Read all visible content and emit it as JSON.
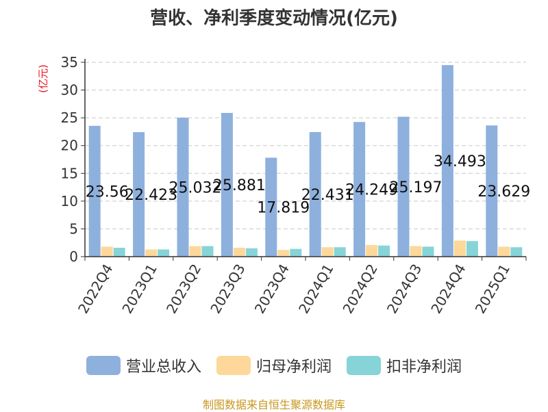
{
  "chart_data": {
    "type": "bar",
    "title": "营收、净利季度变动情况(亿元)",
    "ylabel": "(亿元)",
    "xlabel": "",
    "ylim": [
      0,
      35
    ],
    "yticks": [
      0,
      5,
      10,
      15,
      20,
      25,
      30,
      35
    ],
    "grid": true,
    "legend_position": "bottom",
    "categories": [
      "2022Q4",
      "2023Q1",
      "2023Q2",
      "2023Q3",
      "2023Q4",
      "2024Q1",
      "2024Q2",
      "2024Q3",
      "2024Q4",
      "2025Q1"
    ],
    "series": [
      {
        "name": "营业总收入",
        "color": "#8eb0dd",
        "values": [
          23.56,
          22.423,
          25.032,
          25.881,
          17.819,
          22.431,
          24.249,
          25.197,
          34.493,
          23.629
        ],
        "labels": [
          "23.56",
          "22.423",
          "25.032",
          "25.881",
          "17.819",
          "22.431",
          "24.249",
          "25.197",
          "34.493",
          "23.629"
        ]
      },
      {
        "name": "归母净利润",
        "color": "#fdd89a",
        "values": [
          1.8,
          1.3,
          1.9,
          1.6,
          1.2,
          1.7,
          2.1,
          1.9,
          2.9,
          1.8
        ]
      },
      {
        "name": "扣非净利润",
        "color": "#86d4d7",
        "values": [
          1.6,
          1.3,
          1.9,
          1.5,
          1.4,
          1.7,
          2.0,
          1.8,
          2.8,
          1.7
        ]
      }
    ]
  },
  "footer": {
    "source": "制图数据来自恒生聚源数据库"
  }
}
